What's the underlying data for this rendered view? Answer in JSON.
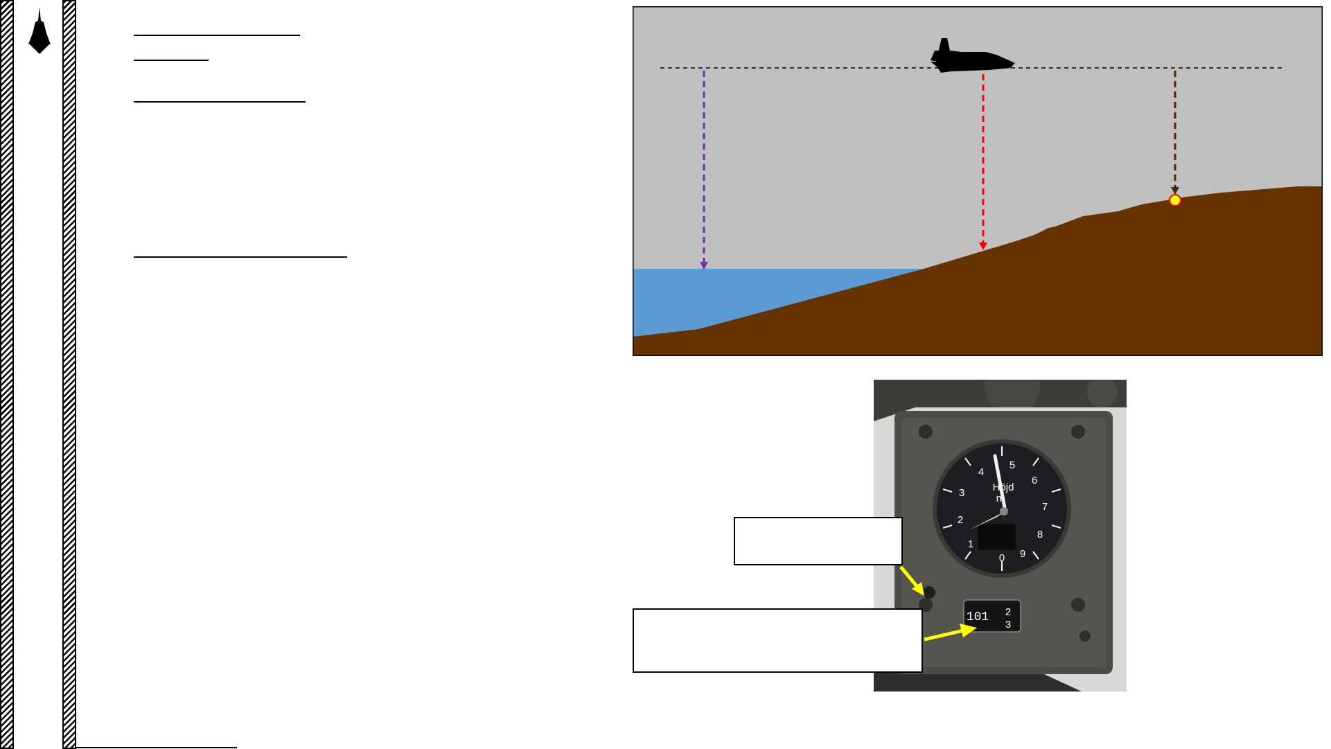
{
  "sidebar": {
    "logo_icon": "jet-silhouette-icon"
  },
  "headings": {
    "h1": "",
    "h2": "",
    "h3": "",
    "h4": "",
    "footer": ""
  },
  "diagram": {
    "colors": {
      "sky": "#c0c0c0",
      "ground": "#663300",
      "water": "#5b9bd5",
      "purple_line": "#7030a0",
      "red_line": "#ff0000",
      "brown_line": "#4d2600",
      "target_dot": "#ffff00",
      "target_ring": "#ff0000"
    },
    "aircraft_icon": "fighter-jet-icon"
  },
  "photo": {
    "dial_numbers": [
      "0",
      "1",
      "2",
      "3",
      "4",
      "5",
      "6",
      "7",
      "8",
      "9"
    ],
    "dial_label_1": "Höjd",
    "dial_label_2": "m",
    "counter_value": "101",
    "counter_digit_top": "2",
    "counter_digit_bottom": "3"
  },
  "callouts": {
    "knob_label": "",
    "counter_label": ""
  },
  "arrow_color": "#ffff00"
}
